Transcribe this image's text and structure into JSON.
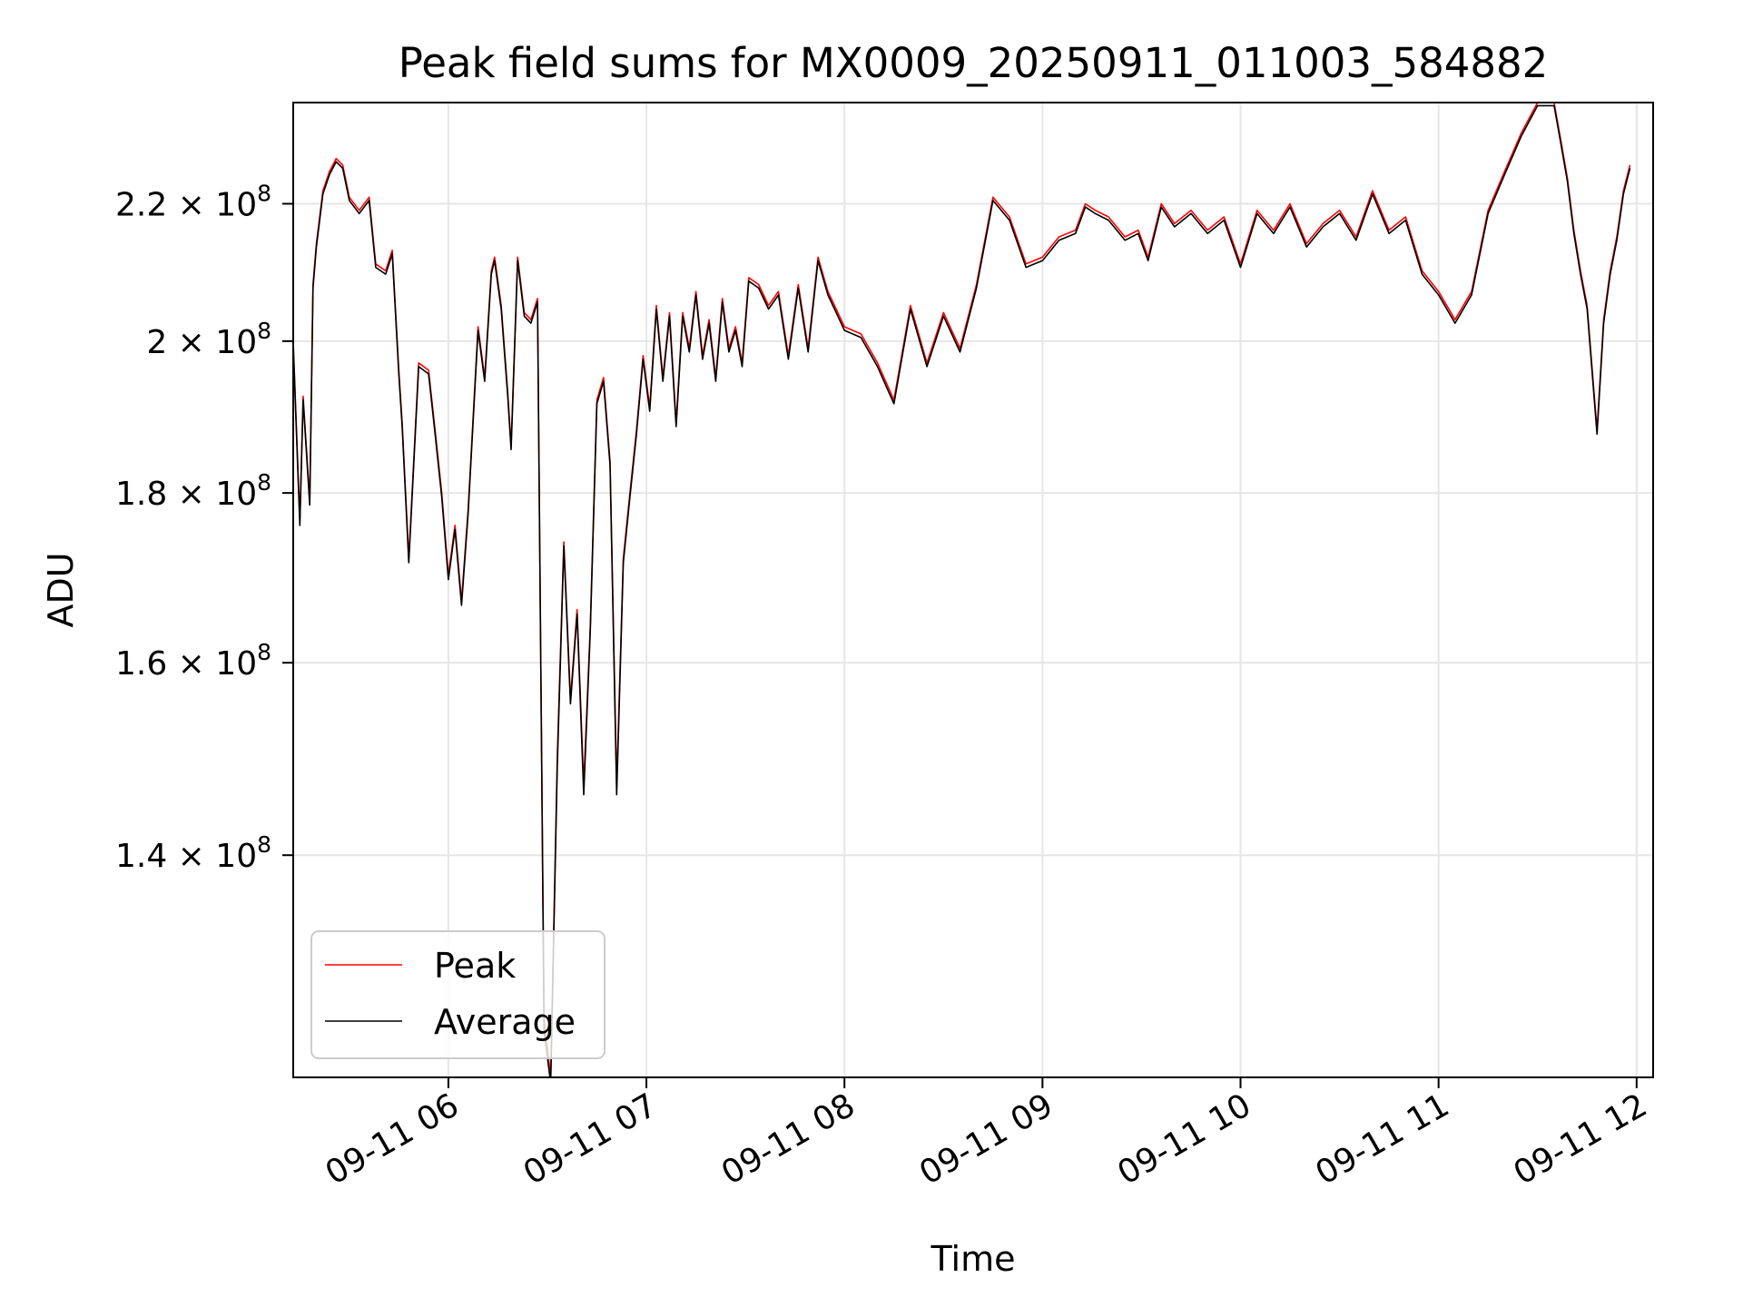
{
  "chart_data": {
    "type": "line",
    "title": "Peak field sums for MX0009_20250911_011003_584882",
    "xlabel": "Time",
    "ylabel": "ADU",
    "y_scale": "log",
    "xlim": [
      "2025-09-11 05:13",
      "2025-09-11 12:05"
    ],
    "ylim": [
      120000000,
      236000000
    ],
    "grid": true,
    "legend_position": "lower-left",
    "x_ticks": [
      {
        "time": "2025-09-11 06:00",
        "label": "09-11 06"
      },
      {
        "time": "2025-09-11 07:00",
        "label": "09-11 07"
      },
      {
        "time": "2025-09-11 08:00",
        "label": "09-11 08"
      },
      {
        "time": "2025-09-11 09:00",
        "label": "09-11 09"
      },
      {
        "time": "2025-09-11 10:00",
        "label": "09-11 10"
      },
      {
        "time": "2025-09-11 11:00",
        "label": "09-11 11"
      },
      {
        "time": "2025-09-11 12:00",
        "label": "09-11 12"
      }
    ],
    "y_ticks": [
      {
        "value": 140000000,
        "mantissa": "1.4",
        "exponent": "8"
      },
      {
        "value": 160000000,
        "mantissa": "1.6",
        "exponent": "8"
      },
      {
        "value": 180000000,
        "mantissa": "1.8",
        "exponent": "8"
      },
      {
        "value": 200000000,
        "mantissa": "2",
        "exponent": "8"
      },
      {
        "value": 220000000,
        "mantissa": "2.2",
        "exponent": "8"
      }
    ],
    "x": [
      "2025-09-11 05:13",
      "2025-09-11 05:15",
      "2025-09-11 05:16",
      "2025-09-11 05:18",
      "2025-09-11 05:19",
      "2025-09-11 05:20",
      "2025-09-11 05:22",
      "2025-09-11 05:24",
      "2025-09-11 05:26",
      "2025-09-11 05:28",
      "2025-09-11 05:30",
      "2025-09-11 05:33",
      "2025-09-11 05:36",
      "2025-09-11 05:38",
      "2025-09-11 05:41",
      "2025-09-11 05:43",
      "2025-09-11 05:45",
      "2025-09-11 05:46",
      "2025-09-11 05:48",
      "2025-09-11 05:51",
      "2025-09-11 05:54",
      "2025-09-11 05:56",
      "2025-09-11 05:58",
      "2025-09-11 06:00",
      "2025-09-11 06:02",
      "2025-09-11 06:04",
      "2025-09-11 06:06",
      "2025-09-11 06:09",
      "2025-09-11 06:11",
      "2025-09-11 06:13",
      "2025-09-11 06:14",
      "2025-09-11 06:16",
      "2025-09-11 06:18",
      "2025-09-11 06:19",
      "2025-09-11 06:21",
      "2025-09-11 06:23",
      "2025-09-11 06:25",
      "2025-09-11 06:27",
      "2025-09-11 06:29",
      "2025-09-11 06:31",
      "2025-09-11 06:33",
      "2025-09-11 06:35",
      "2025-09-11 06:37",
      "2025-09-11 06:39",
      "2025-09-11 06:41",
      "2025-09-11 06:43",
      "2025-09-11 06:45",
      "2025-09-11 06:47",
      "2025-09-11 06:49",
      "2025-09-11 06:51",
      "2025-09-11 06:53",
      "2025-09-11 06:55",
      "2025-09-11 06:57",
      "2025-09-11 06:59",
      "2025-09-11 07:01",
      "2025-09-11 07:03",
      "2025-09-11 07:05",
      "2025-09-11 07:07",
      "2025-09-11 07:09",
      "2025-09-11 07:11",
      "2025-09-11 07:13",
      "2025-09-11 07:15",
      "2025-09-11 07:17",
      "2025-09-11 07:19",
      "2025-09-11 07:21",
      "2025-09-11 07:23",
      "2025-09-11 07:25",
      "2025-09-11 07:27",
      "2025-09-11 07:29",
      "2025-09-11 07:31",
      "2025-09-11 07:34",
      "2025-09-11 07:37",
      "2025-09-11 07:40",
      "2025-09-11 07:43",
      "2025-09-11 07:46",
      "2025-09-11 07:49",
      "2025-09-11 07:52",
      "2025-09-11 07:55",
      "2025-09-11 07:58",
      "2025-09-11 08:00",
      "2025-09-11 08:05",
      "2025-09-11 08:10",
      "2025-09-11 08:15",
      "2025-09-11 08:20",
      "2025-09-11 08:25",
      "2025-09-11 08:30",
      "2025-09-11 08:35",
      "2025-09-11 08:40",
      "2025-09-11 08:45",
      "2025-09-11 08:50",
      "2025-09-11 08:55",
      "2025-09-11 09:00",
      "2025-09-11 09:05",
      "2025-09-11 09:10",
      "2025-09-11 09:13",
      "2025-09-11 09:16",
      "2025-09-11 09:20",
      "2025-09-11 09:25",
      "2025-09-11 09:29",
      "2025-09-11 09:32",
      "2025-09-11 09:36",
      "2025-09-11 09:40",
      "2025-09-11 09:45",
      "2025-09-11 09:50",
      "2025-09-11 09:55",
      "2025-09-11 10:00",
      "2025-09-11 10:05",
      "2025-09-11 10:10",
      "2025-09-11 10:15",
      "2025-09-11 10:20",
      "2025-09-11 10:25",
      "2025-09-11 10:30",
      "2025-09-11 10:35",
      "2025-09-11 10:40",
      "2025-09-11 10:45",
      "2025-09-11 10:50",
      "2025-09-11 10:55",
      "2025-09-11 11:00",
      "2025-09-11 11:05",
      "2025-09-11 11:10",
      "2025-09-11 11:15",
      "2025-09-11 11:20",
      "2025-09-11 11:25",
      "2025-09-11 11:30",
      "2025-09-11 11:35",
      "2025-09-11 11:37",
      "2025-09-11 11:39",
      "2025-09-11 11:41",
      "2025-09-11 11:43",
      "2025-09-11 11:45",
      "2025-09-11 11:48",
      "2025-09-11 11:50",
      "2025-09-11 11:52",
      "2025-09-11 11:54",
      "2025-09-11 11:56",
      "2025-09-11 11:58"
    ],
    "series": [
      {
        "name": "Peak",
        "color": "#ff0000",
        "values": [
          200000000,
          176500000,
          192500000,
          179000000,
          208000000,
          214000000,
          222000000,
          225000000,
          227000000,
          226000000,
          221000000,
          219000000,
          221000000,
          211000000,
          210000000,
          213000000,
          196000000,
          189000000,
          172000000,
          197000000,
          196000000,
          188000000,
          180000000,
          170000000,
          176000000,
          167000000,
          178000000,
          202000000,
          195000000,
          210000000,
          212000000,
          205000000,
          193000000,
          186000000,
          212000000,
          204000000,
          203000000,
          206000000,
          125000000,
          120000000,
          150000000,
          174000000,
          156000000,
          166000000,
          147000000,
          164000000,
          192000000,
          195000000,
          184000000,
          147000000,
          172000000,
          180000000,
          188000000,
          198000000,
          191000000,
          205000000,
          195000000,
          204000000,
          189000000,
          204000000,
          199000000,
          207000000,
          198000000,
          203000000,
          195000000,
          206000000,
          199000000,
          202000000,
          197000000,
          209000000,
          208000000,
          205000000,
          207000000,
          198000000,
          208000000,
          199000000,
          212000000,
          207000000,
          204000000,
          202000000,
          201000000,
          197000000,
          192000000,
          205000000,
          197000000,
          204000000,
          199000000,
          208000000,
          221000000,
          218000000,
          211000000,
          212000000,
          215000000,
          216000000,
          220000000,
          219000000,
          218000000,
          215000000,
          216000000,
          212000000,
          220000000,
          217000000,
          219000000,
          216000000,
          218000000,
          211000000,
          219000000,
          216000000,
          220000000,
          214000000,
          217000000,
          219000000,
          215000000,
          222000000,
          216000000,
          218000000,
          210000000,
          207000000,
          203000000,
          207000000,
          219000000,
          225000000,
          231000000,
          236000000,
          236000000,
          230000000,
          224000000,
          216000000,
          210000000,
          205000000,
          188000000,
          203000000,
          210000000,
          215000000,
          222000000,
          226000000
        ]
      },
      {
        "name": "Average",
        "color": "#000000",
        "values": [
          199500000,
          176000000,
          192000000,
          178500000,
          207500000,
          213500000,
          221500000,
          224500000,
          226500000,
          225500000,
          220500000,
          218500000,
          220500000,
          210500000,
          209500000,
          212500000,
          195500000,
          188500000,
          171500000,
          196500000,
          195500000,
          187500000,
          179500000,
          169500000,
          175500000,
          166500000,
          177500000,
          201500000,
          194500000,
          209500000,
          211500000,
          204500000,
          192500000,
          185500000,
          211500000,
          203500000,
          202500000,
          205500000,
          124000000,
          119500000,
          149000000,
          173500000,
          155500000,
          165500000,
          146000000,
          163500000,
          191500000,
          194500000,
          183500000,
          146000000,
          171500000,
          179500000,
          187500000,
          197500000,
          190500000,
          204500000,
          194500000,
          203500000,
          188500000,
          203500000,
          198500000,
          206500000,
          197500000,
          202500000,
          194500000,
          205500000,
          198500000,
          201500000,
          196500000,
          208500000,
          207500000,
          204500000,
          206500000,
          197500000,
          207500000,
          198500000,
          211500000,
          206500000,
          203500000,
          201500000,
          200500000,
          196500000,
          191500000,
          204500000,
          196500000,
          203500000,
          198500000,
          207500000,
          220500000,
          217500000,
          210500000,
          211500000,
          214500000,
          215500000,
          219500000,
          218500000,
          217500000,
          214500000,
          215500000,
          211500000,
          219500000,
          216500000,
          218500000,
          215500000,
          217500000,
          210500000,
          218500000,
          215500000,
          219500000,
          213500000,
          216500000,
          218500000,
          214500000,
          221500000,
          215500000,
          217500000,
          209500000,
          206500000,
          202500000,
          206500000,
          218500000,
          224500000,
          230500000,
          235500000,
          235500000,
          229500000,
          223500000,
          215500000,
          209500000,
          204500000,
          187500000,
          202500000,
          209500000,
          214500000,
          221500000,
          225500000
        ]
      }
    ]
  }
}
